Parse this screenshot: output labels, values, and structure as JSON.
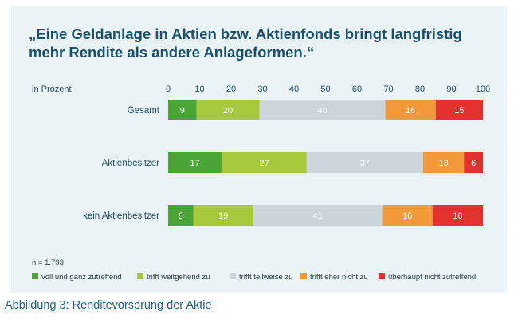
{
  "title": "„Eine Geldanlage in Aktien bzw. Aktienfonds bringt langfristig mehr Rendite als andere Anlageformen.“",
  "caption": "Abbildung 3: Renditevorsprung der Aktie",
  "note": "n = 1.793",
  "chart_data": {
    "type": "bar",
    "orientation": "horizontal",
    "stacked": true,
    "ylabel": "in Prozent",
    "xlim": [
      0,
      100
    ],
    "ticks": [
      0,
      10,
      20,
      30,
      40,
      50,
      60,
      70,
      80,
      90,
      100
    ],
    "tick_position": "top",
    "grid": false,
    "legend_position": "bottom",
    "categories": [
      "Gesamt",
      "Aktienbesitzer",
      "kein Aktienbesitzer"
    ],
    "series": [
      {
        "name": "voll und ganz zutreffend",
        "color": "#4aa536",
        "label_color": "#ffffff",
        "values": [
          9,
          17,
          8
        ]
      },
      {
        "name": "trifft weitgehend zu",
        "color": "#a6c93b",
        "label_color": "#ffffff",
        "values": [
          20,
          27,
          19
        ]
      },
      {
        "name": "trifft teilweise zu",
        "color": "#cbd5da",
        "label_color": "#ffffff",
        "values": [
          40,
          37,
          41
        ]
      },
      {
        "name": "trifft eher nicht zu",
        "color": "#f29a3a",
        "label_color": "#ffffff",
        "values": [
          16,
          13,
          16
        ]
      },
      {
        "name": "überhaupt nicht zutreffend",
        "color": "#e3312d",
        "label_color": "#ffffff",
        "values": [
          15,
          6,
          16
        ]
      }
    ]
  }
}
